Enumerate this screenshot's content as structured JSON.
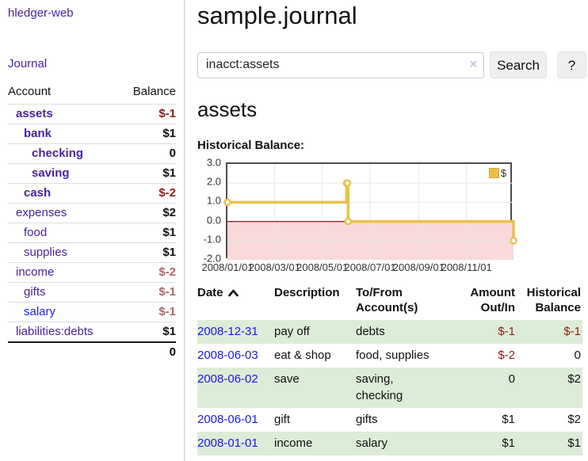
{
  "app": {
    "brand": "hledger-web",
    "nav_journal": "Journal"
  },
  "sidebar": {
    "header": {
      "account": "Account",
      "balance": "Balance"
    },
    "accounts": [
      {
        "name": "assets",
        "balance": "$-1"
      },
      {
        "name": "bank",
        "balance": "$1"
      },
      {
        "name": "checking",
        "balance": "0"
      },
      {
        "name": "saving",
        "balance": "$1"
      },
      {
        "name": "cash",
        "balance": "$-2"
      },
      {
        "name": "expenses",
        "balance": "$2"
      },
      {
        "name": "food",
        "balance": "$1"
      },
      {
        "name": "supplies",
        "balance": "$1"
      },
      {
        "name": "income",
        "balance": "$-2"
      },
      {
        "name": "gifts",
        "balance": "$-1"
      },
      {
        "name": "salary",
        "balance": "$-1"
      },
      {
        "name": "liabilities:debts",
        "balance": "$1"
      }
    ],
    "total": "0"
  },
  "header": {
    "title": "sample.journal"
  },
  "search": {
    "value": "inacct:assets",
    "clear_icon": "×",
    "button": "Search",
    "help": "?"
  },
  "account_page": {
    "title": "assets",
    "chart_label": "Historical Balance:"
  },
  "chart_data": {
    "type": "line",
    "style": "steps-post",
    "series": [
      {
        "name": "$",
        "color": "#e8c24a",
        "points": [
          [
            "2008-01-01",
            1
          ],
          [
            "2008-06-01",
            2
          ],
          [
            "2008-06-02",
            2
          ],
          [
            "2008-06-03",
            0
          ],
          [
            "2008-12-31",
            -1
          ]
        ]
      }
    ],
    "xrange": [
      "2008-01-01",
      "2008-12-31"
    ],
    "ylim": [
      -2,
      3
    ],
    "yticks": [
      3.0,
      2.0,
      1.0,
      0.0,
      -1.0,
      -2.0
    ],
    "xticks": [
      "2008-01-01",
      "2008-03-01",
      "2008-05-01",
      "2008-07-01",
      "2008-09-01",
      "2008-11-01"
    ],
    "xtick_labels": [
      "2008/01/01",
      "2008/03/01",
      "2008/05/01",
      "2008/07/01",
      "2008/09/01",
      "2008/11/01"
    ],
    "negative_zone_fill": "#f9d9d9",
    "zero_line_color": "#8b1a1a",
    "legend": {
      "position": "top-right",
      "entries": [
        "$"
      ]
    },
    "grid": true
  },
  "register": {
    "headers": {
      "date": "Date",
      "description": "Description",
      "accounts": "To/From Account(s)",
      "amount": "Amount Out/In",
      "balance": "Historical Balance"
    },
    "rows": [
      {
        "date": "2008-12-31",
        "description": "pay off",
        "accounts": "debts",
        "amount": "$-1",
        "balance": "$-1"
      },
      {
        "date": "2008-06-03",
        "description": "eat & shop",
        "accounts": "food, supplies",
        "amount": "$-2",
        "balance": "0"
      },
      {
        "date": "2008-06-02",
        "description": "save",
        "accounts": "saving, checking",
        "amount": "0",
        "balance": "$2"
      },
      {
        "date": "2008-06-01",
        "description": "gift",
        "accounts": "gifts",
        "amount": "$1",
        "balance": "$2"
      },
      {
        "date": "2008-01-01",
        "description": "income",
        "accounts": "salary",
        "amount": "$1",
        "balance": "$1"
      }
    ]
  }
}
